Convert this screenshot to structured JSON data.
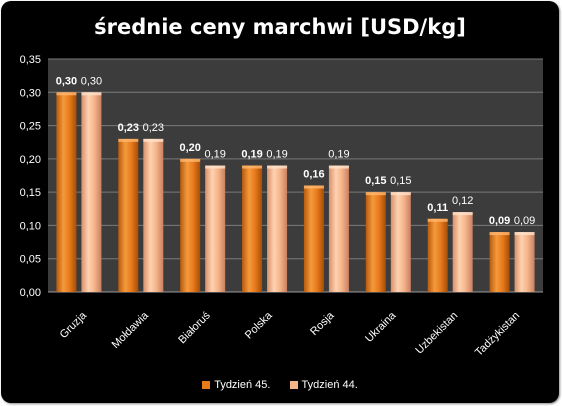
{
  "chart_data": {
    "type": "bar",
    "title": "średnie ceny marchwi [USD/kg]",
    "categories": [
      "Gruzja",
      "Mołdawia",
      "Białoruś",
      "Polska",
      "Rosja",
      "Ukraina",
      "Uzbekistan",
      "Tadżykistan"
    ],
    "series": [
      {
        "name": "Tydzień 45.",
        "values": [
          0.3,
          0.23,
          0.2,
          0.19,
          0.16,
          0.15,
          0.11,
          0.09
        ],
        "labels": [
          "0,30",
          "0,23",
          "0,20",
          "0,19",
          "0,16",
          "0,15",
          "0,11",
          "0,09"
        ],
        "color": "#e87a1c"
      },
      {
        "name": "Tydzień 44.",
        "values": [
          0.3,
          0.23,
          0.19,
          0.19,
          0.19,
          0.15,
          0.12,
          0.09
        ],
        "labels": [
          "0,30",
          "0,23",
          "0,19",
          "0,19",
          "0,19",
          "0,15",
          "0,12",
          "0,09"
        ],
        "color": "#f4b48a"
      }
    ],
    "ylim": [
      0,
      0.35
    ],
    "yticks": [
      "0,00",
      "0,05",
      "0,10",
      "0,15",
      "0,20",
      "0,25",
      "0,30",
      "0,35"
    ],
    "grid": true,
    "legend": "bottom",
    "plot_background": "#3c3c3c"
  }
}
